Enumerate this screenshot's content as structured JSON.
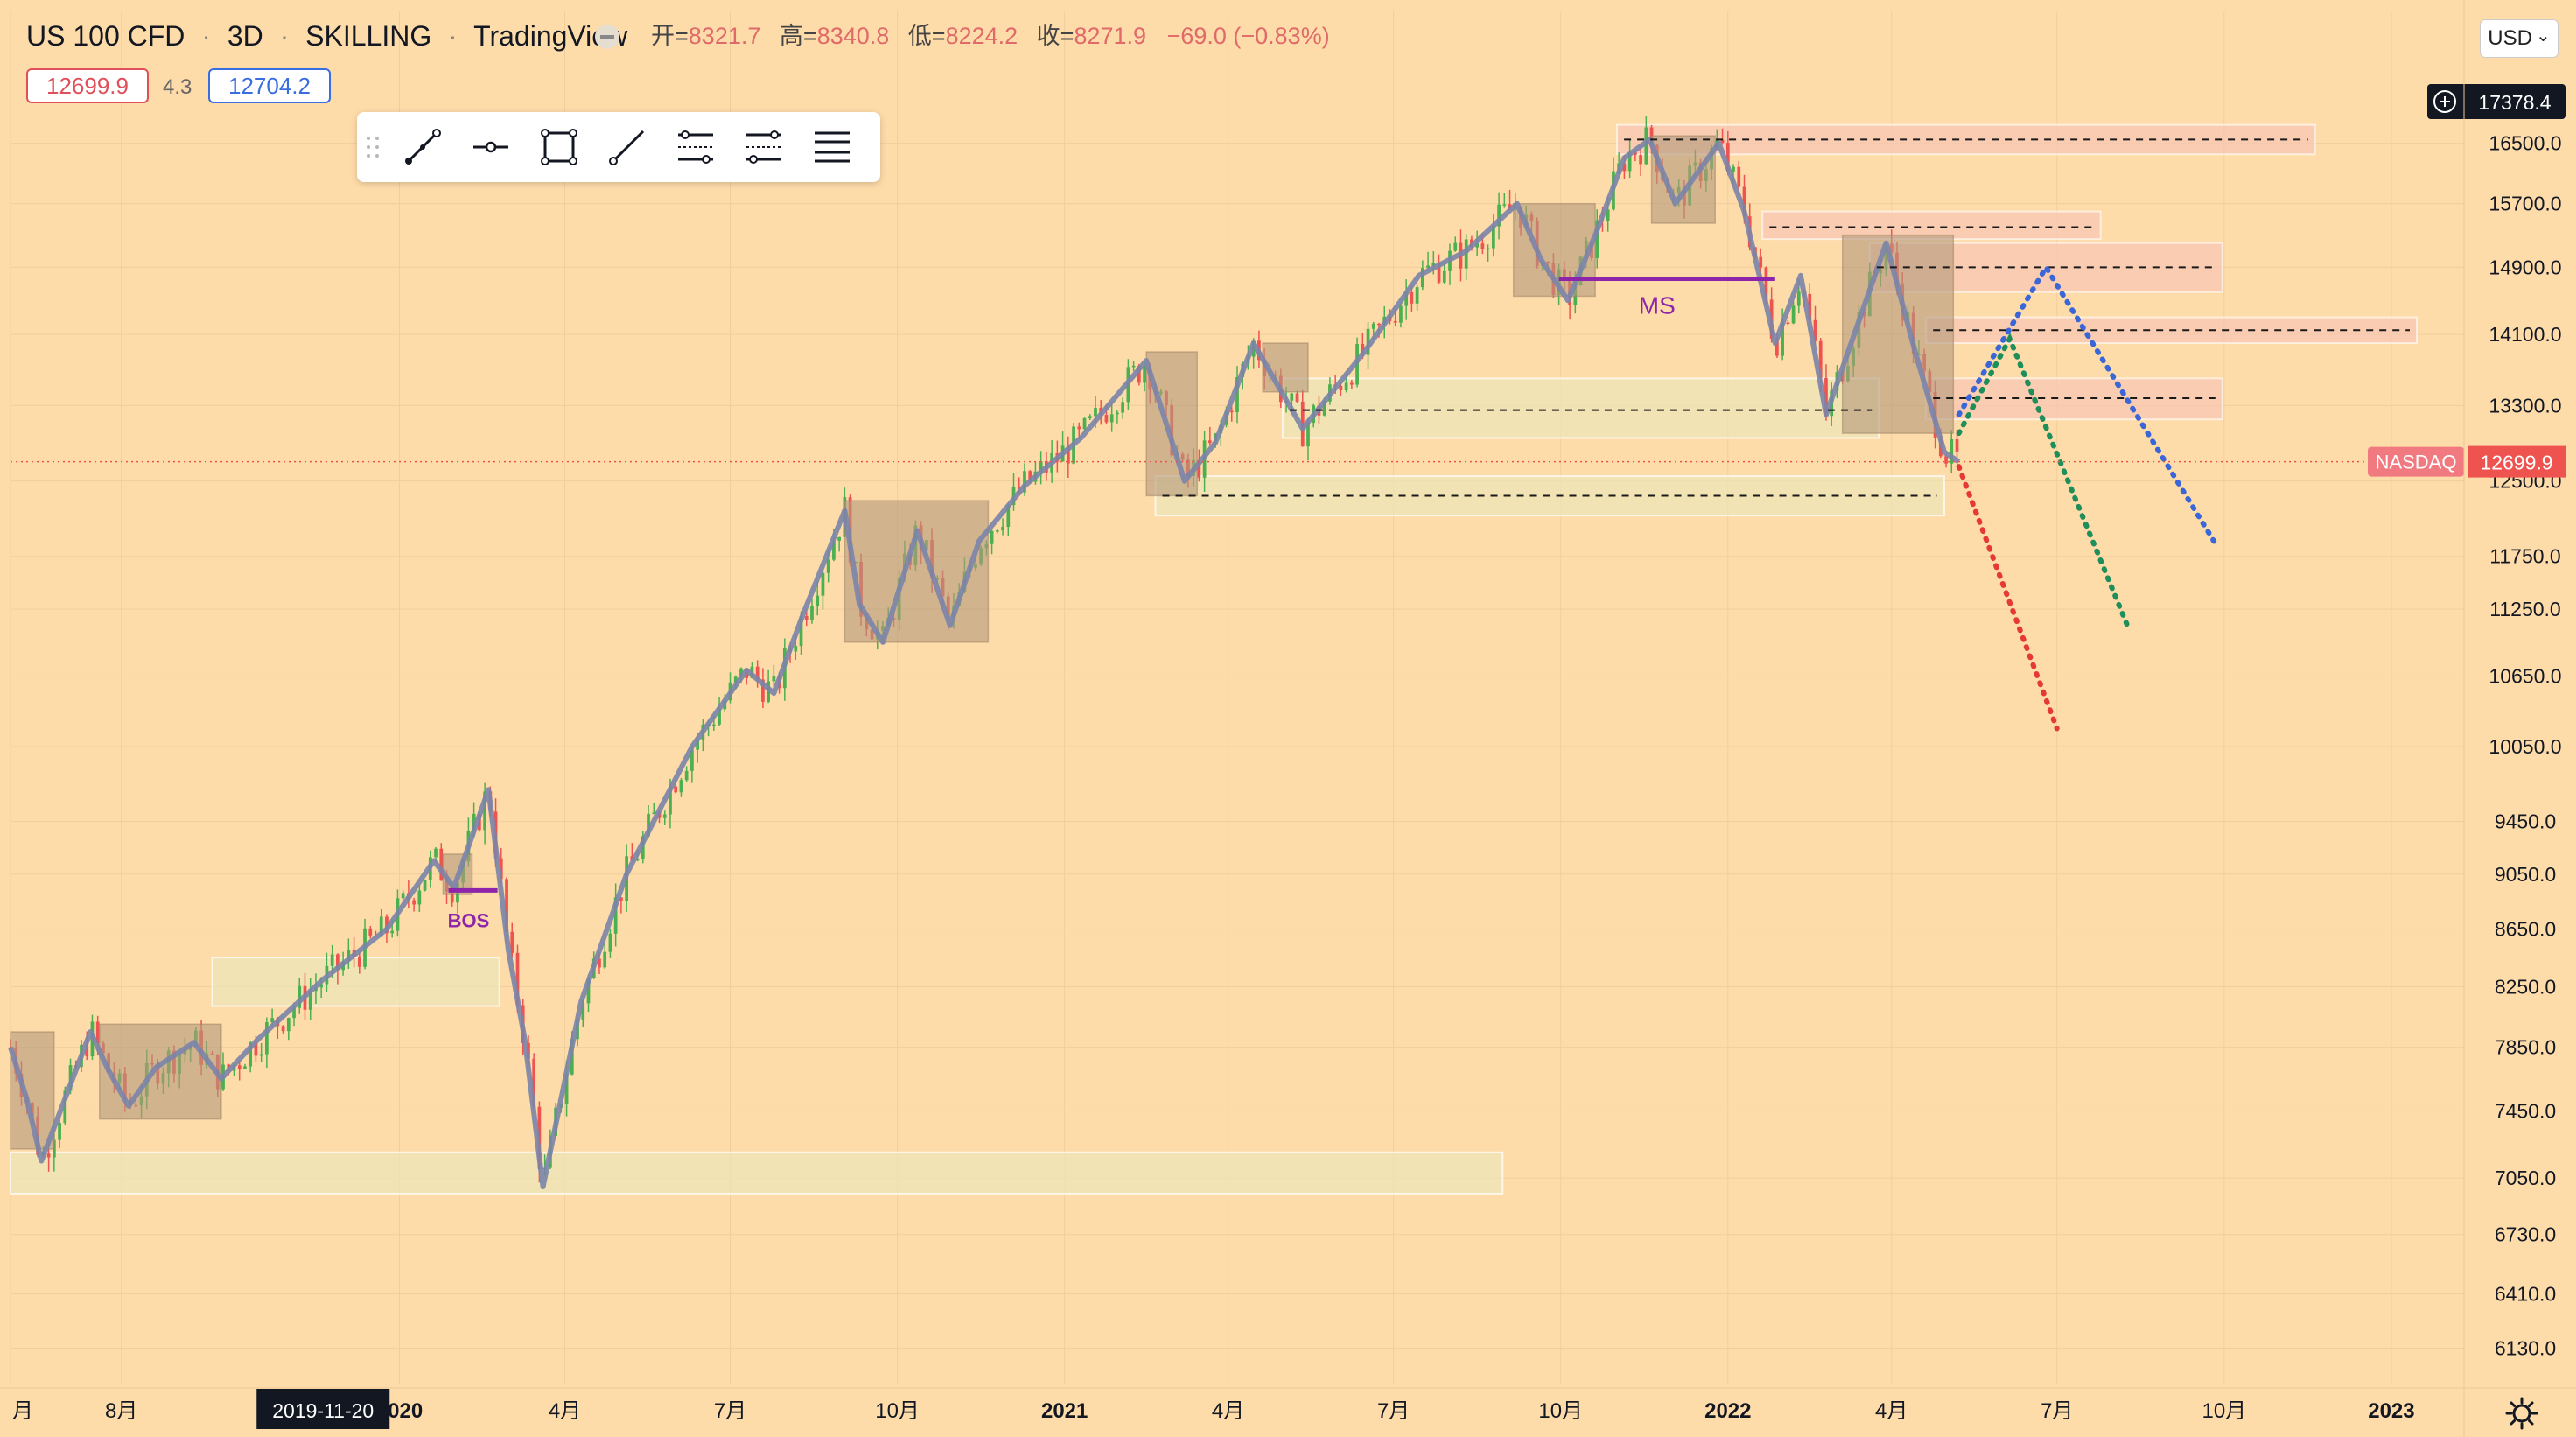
{
  "header": {
    "symbol": "US 100 CFD",
    "sep1": "·",
    "interval": "3D",
    "sep2": "·",
    "broker": "SKILLING",
    "sep3": "·",
    "platform": "TradingView",
    "ohlc": {
      "open_label": "开=",
      "open": "8321.7",
      "high_label": "高=",
      "high": "8340.8",
      "low_label": "低=",
      "low": "8224.2",
      "close_label": "收=",
      "close": "8271.9",
      "change": "−69.0 (−0.83%)"
    }
  },
  "quote": {
    "bid": "12699.9",
    "spread": "4.3",
    "ask": "12704.2"
  },
  "toolbar": {
    "tools": [
      "trend-line-tool",
      "horizontal-ray-tool",
      "rectangle-tool",
      "ray-tool",
      "long-position-tool",
      "short-position-tool",
      "fib-retracement-tool"
    ]
  },
  "price_axis": {
    "currency": "USD",
    "currency_chevron": "⌄",
    "crosshair_price": "17378.4",
    "current_price": "12699.9",
    "current_tag": "NASDAQ",
    "ticks": [
      "16500.0",
      "15700.0",
      "14900.0",
      "14100.0",
      "13300.0",
      "12500.0",
      "11750.0",
      "11250.0",
      "10650.0",
      "10050.0",
      "9450.0",
      "9050.0",
      "8650.0",
      "8250.0",
      "7850.0",
      "7450.0",
      "7050.0",
      "6730.0",
      "6410.0",
      "6130.0"
    ]
  },
  "time_axis": {
    "labels": [
      "月",
      "8月",
      "2020",
      "4月",
      "7月",
      "10月",
      "2021",
      "4月",
      "7月",
      "10月",
      "2022",
      "4月",
      "7月",
      "10月",
      "2023"
    ],
    "crosshair_date": "2019-11-20"
  },
  "annotations": {
    "bos": "BOS",
    "ms": "MS"
  },
  "colors": {
    "background": "#fedcaa",
    "up": "#4caf50",
    "down": "#ef5350",
    "supply_zone": "#f8c4b4",
    "demand_zone": "#ece5b6",
    "consolidation_box": "#b59a7c",
    "structure_line": "#7a84a8",
    "marker_purple": "#8e24aa",
    "projection_red": "#e53935",
    "projection_green": "#1e8e5a",
    "projection_blue": "#3a66d8"
  },
  "chart_data": {
    "type": "candlestick",
    "symbol": "US 100 CFD",
    "interval": "3D",
    "y_scale": "log",
    "ylim": [
      5950,
      18400
    ],
    "xlim": [
      "2019-06-01",
      "2023-02-10"
    ],
    "last_price": 12699.9,
    "ohlc_crosshair": {
      "date": "2019-11-20",
      "open": 8321.7,
      "high": 8340.8,
      "low": 8224.2,
      "close": 8271.9
    },
    "price_path": [
      [
        "2019-06-01",
        7850
      ],
      [
        "2019-06-10",
        7520
      ],
      [
        "2019-06-18",
        7150
      ],
      [
        "2019-07-15",
        7950
      ],
      [
        "2019-07-25",
        7700
      ],
      [
        "2019-08-05",
        7480
      ],
      [
        "2019-08-20",
        7720
      ],
      [
        "2019-09-10",
        7880
      ],
      [
        "2019-09-25",
        7650
      ],
      [
        "2019-10-15",
        7900
      ],
      [
        "2019-11-20",
        8300
      ],
      [
        "2019-12-25",
        8650
      ],
      [
        "2020-01-20",
        9150
      ],
      [
        "2020-01-31",
        8950
      ],
      [
        "2020-02-19",
        9700
      ],
      [
        "2020-03-01",
        8500
      ],
      [
        "2020-03-10",
        7900
      ],
      [
        "2020-03-20",
        7000
      ],
      [
        "2020-04-10",
        8150
      ],
      [
        "2020-05-05",
        9050
      ],
      [
        "2020-06-10",
        10050
      ],
      [
        "2020-07-10",
        10700
      ],
      [
        "2020-07-25",
        10500
      ],
      [
        "2020-08-10",
        11200
      ],
      [
        "2020-09-02",
        12200
      ],
      [
        "2020-09-10",
        11300
      ],
      [
        "2020-09-23",
        10950
      ],
      [
        "2020-10-12",
        12000
      ],
      [
        "2020-10-30",
        11100
      ],
      [
        "2020-11-15",
        11900
      ],
      [
        "2020-12-10",
        12450
      ],
      [
        "2021-01-10",
        12950
      ],
      [
        "2021-02-15",
        13800
      ],
      [
        "2021-03-08",
        12500
      ],
      [
        "2021-03-25",
        12900
      ],
      [
        "2021-04-15",
        14000
      ],
      [
        "2021-05-12",
        13050
      ],
      [
        "2021-06-15",
        13900
      ],
      [
        "2021-07-15",
        14800
      ],
      [
        "2021-08-10",
        15100
      ],
      [
        "2021-09-07",
        15700
      ],
      [
        "2021-09-20",
        15000
      ],
      [
        "2021-10-05",
        14500
      ],
      [
        "2021-10-20",
        15300
      ],
      [
        "2021-11-05",
        16300
      ],
      [
        "2021-11-19",
        16550
      ],
      [
        "2021-12-03",
        15700
      ],
      [
        "2021-12-27",
        16500
      ],
      [
        "2022-01-10",
        15600
      ],
      [
        "2022-01-27",
        14000
      ],
      [
        "2022-02-10",
        14800
      ],
      [
        "2022-02-24",
        13200
      ],
      [
        "2022-03-29",
        15200
      ],
      [
        "2022-04-14",
        13900
      ],
      [
        "2022-04-30",
        12800
      ],
      [
        "2022-05-08",
        12700
      ]
    ],
    "bos_level": 8930,
    "ms_level": 14760,
    "supply_zones": [
      {
        "from": "2021-11-01",
        "to": "2022-11-20",
        "low": 16350,
        "high": 16750,
        "level": 16550
      },
      {
        "from": "2022-01-20",
        "to": "2022-07-25",
        "low": 15250,
        "high": 15600,
        "level": 15400
      },
      {
        "from": "2022-03-20",
        "to": "2022-09-30",
        "low": 14600,
        "high": 15200,
        "level": 14900
      },
      {
        "from": "2022-04-20",
        "to": "2023-01-15",
        "low": 14000,
        "high": 14300,
        "level": 14150
      },
      {
        "from": "2022-04-20",
        "to": "2022-09-30",
        "low": 13150,
        "high": 13600,
        "level": 13380
      }
    ],
    "demand_zones": [
      {
        "from": "2019-06-01",
        "to": "2021-08-30",
        "low": 6960,
        "high": 7200
      },
      {
        "from": "2019-09-20",
        "to": "2020-02-25",
        "low": 8120,
        "high": 8450
      },
      {
        "from": "2021-05-01",
        "to": "2022-03-25",
        "low": 12950,
        "high": 13600,
        "level": 13250
      },
      {
        "from": "2021-02-20",
        "to": "2022-04-30",
        "low": 12150,
        "high": 12550,
        "level": 12350
      }
    ],
    "consolidation_boxes": [
      {
        "from": "2019-06-01",
        "to": "2019-06-25",
        "low": 7220,
        "high": 7950
      },
      {
        "from": "2019-07-20",
        "to": "2019-09-25",
        "low": 7400,
        "high": 8000
      },
      {
        "from": "2020-01-25",
        "to": "2020-02-10",
        "low": 8900,
        "high": 9200
      },
      {
        "from": "2020-09-02",
        "to": "2020-11-20",
        "low": 10950,
        "high": 12300
      },
      {
        "from": "2021-02-15",
        "to": "2021-03-15",
        "low": 12350,
        "high": 13900
      },
      {
        "from": "2021-04-20",
        "to": "2021-05-15",
        "low": 13450,
        "high": 14000
      },
      {
        "from": "2021-09-05",
        "to": "2021-10-20",
        "low": 14550,
        "high": 15700
      },
      {
        "from": "2021-11-20",
        "to": "2021-12-25",
        "low": 15450,
        "high": 16600
      },
      {
        "from": "2022-03-05",
        "to": "2022-05-05",
        "low": 13000,
        "high": 15300
      }
    ],
    "projections": [
      {
        "color": "red",
        "points": [
          [
            "2022-05-08",
            12650
          ],
          [
            "2022-07-01",
            10200
          ]
        ]
      },
      {
        "color": "green",
        "points": [
          [
            "2022-05-08",
            13000
          ],
          [
            "2022-06-05",
            14050
          ],
          [
            "2022-08-10",
            11050
          ]
        ]
      },
      {
        "color": "blue",
        "points": [
          [
            "2022-05-08",
            13200
          ],
          [
            "2022-06-25",
            14900
          ],
          [
            "2022-09-27",
            11850
          ]
        ]
      }
    ]
  }
}
